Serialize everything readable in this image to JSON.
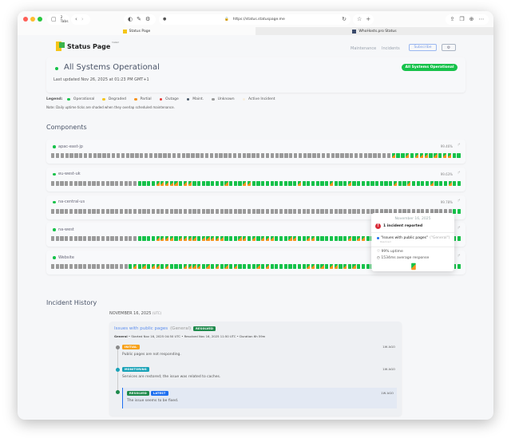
{
  "browser": {
    "tabs_count": "2 Tabs",
    "url": "https://status.statuspage.me",
    "tabs": [
      {
        "label": "Status Page",
        "active": true
      },
      {
        "label": "WhoHosts.pro Status",
        "active": false
      }
    ]
  },
  "header": {
    "logo_text": "Status Page",
    "logo_sup": "hosted",
    "nav": [
      "Maintenance",
      "Incidents"
    ],
    "subscribe_label": "Subscribe",
    "settings_icon": "gear-icon"
  },
  "status": {
    "title": "All Systems Operational",
    "last_updated": "Last updated Nov 26, 2025 at 01:23 PM GMT+1",
    "badge": "All Systems Operational"
  },
  "legend": {
    "label": "Legend:",
    "items": [
      {
        "label": "Operational",
        "color": "#16c24a"
      },
      {
        "label": "Degraded",
        "color": "#f5c518"
      },
      {
        "label": "Partial",
        "color": "#f7931e"
      },
      {
        "label": "Outage",
        "color": "#e53935"
      },
      {
        "label": "Maint.",
        "color": "#4a5a6a"
      },
      {
        "label": "Unknown",
        "color": "#9a9a9a"
      },
      {
        "label": "Active Incident",
        "color": "#f7eedd"
      }
    ],
    "note": "Note: Daily uptime ticks are shaded when they overlap scheduled maintenance."
  },
  "components": {
    "title": "Components",
    "items": [
      {
        "name": "apac-east-jp",
        "uptime": "99.46%",
        "ticks": "uuuuuuuuuuuuuuuuuuuuuuuuuuuuuuuuuuuuuuuuuuuuuuuuuuuuuuuuuuuuuuuuuuuuuuuuupoopopppopoppoo"
      },
      {
        "name": "eu-west-uk",
        "uptime": "99.63%",
        "ticks": "uuuuuuuuuuuuuuuuuuuoooopppppoppooooooopoooppoooooooooopoooooopooopooooooooopoopoooopooopoo"
      },
      {
        "name": "na-central-us",
        "uptime": "99.78%",
        "ticks": "uuuuuuuuuuuuuuuuuuuuuuuuuuuuuuuuuuuuuuuuuuuuuuuuuuuuuuuuuuuuuuuuuuuuuuuuuuuuuuuuuuuuuuuuoo"
      },
      {
        "name": "na-west",
        "uptime": "99.71%",
        "ticks": "uuuuuuuuuuuuuuuuuuuooooppppoppppopppppoooppopopppoooppooppooooooopoppoooooooooooooopoooooo"
      },
      {
        "name": "Website",
        "uptime": "99.80%",
        "ticks": "uuuuuuuuuuuuuuuuuopopoppopoooppppopopopopoooopopooooooooppopoppopopooooppoopopopoooopppooo"
      }
    ]
  },
  "tooltip": {
    "date": "November 16, 2025",
    "incidents": "1 incident reported",
    "incident_title": "\"Issues with public pages\"",
    "incident_group": "(\"General\")",
    "incident_status": "Resolved",
    "uptime": "99% uptime",
    "response": "1534ms average response"
  },
  "history": {
    "title": "Incident History",
    "date": "NOVEMBER 16, 2025",
    "tz": "(UTC)",
    "incident": {
      "title": "Issues with public pages",
      "group": "(General)",
      "badge": "RESOLVED",
      "meta_group": "General",
      "meta": " • Started Nov 16, 2025 04:50 UTC • Resolved Nov 16, 2025 11:50 UTC • Duration 6h 59m",
      "updates": [
        {
          "badge": "INITIAL",
          "badge_color": "#f7a21b",
          "dot": "#8a8a8a",
          "text": "Public pages are not responding.",
          "ago": "1W AGO"
        },
        {
          "badge": "MONITORING",
          "badge_color": "#1aa3b8",
          "dot": "#1aa3b8",
          "text": "Services are restored; the issue was related to caches.",
          "ago": "1W AGO"
        },
        {
          "badge": "RESOLVED",
          "badge2": "LATEST",
          "badge_color": "#1e8a4c",
          "badge2_color": "#1e6ff0",
          "dot": "#1e8a4c",
          "text": "The issue seems to be fixed.",
          "ago": "1W AGO"
        }
      ]
    }
  },
  "colors": {
    "operational": "#16c24a",
    "partial": "#f7931e",
    "unknown": "#9a9a9a",
    "accent": "#16c24a"
  }
}
